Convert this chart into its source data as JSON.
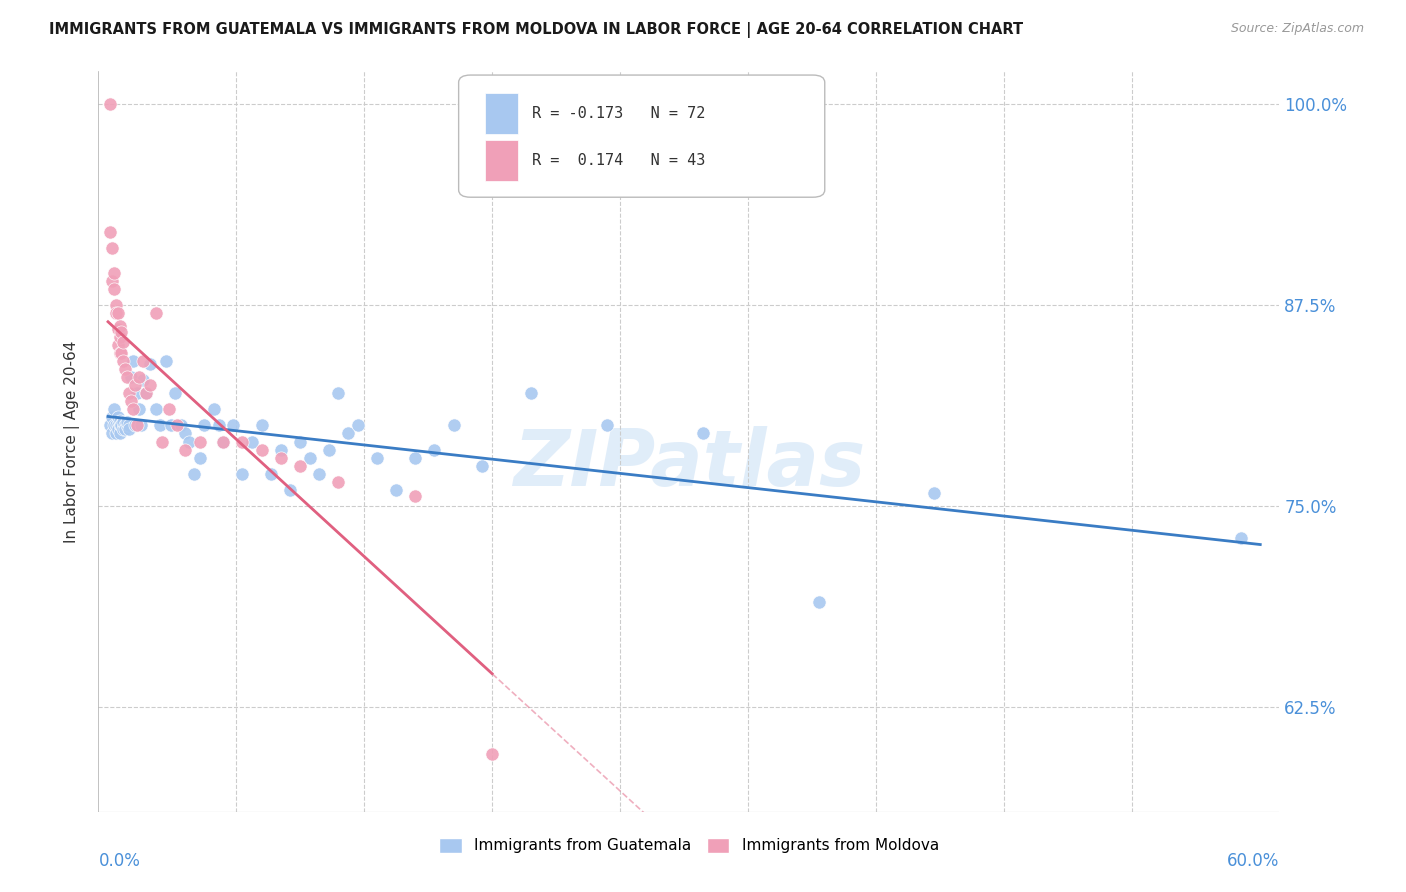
{
  "title": "IMMIGRANTS FROM GUATEMALA VS IMMIGRANTS FROM MOLDOVA IN LABOR FORCE | AGE 20-64 CORRELATION CHART",
  "source": "Source: ZipAtlas.com",
  "ylabel": "In Labor Force | Age 20-64",
  "watermark": "ZIPatlas",
  "legend_blue_r": "-0.173",
  "legend_blue_n": "72",
  "legend_pink_r": "0.174",
  "legend_pink_n": "43",
  "legend_label_blue": "Immigrants from Guatemala",
  "legend_label_pink": "Immigrants from Moldova",
  "blue_color": "#a8c8f0",
  "pink_color": "#f0a0b8",
  "blue_line_color": "#3a7cc4",
  "pink_line_color": "#e06080",
  "ytick_values": [
    0.625,
    0.75,
    0.875,
    1.0
  ],
  "ytick_labels": [
    "62.5%",
    "75.0%",
    "87.5%",
    "100.0%"
  ],
  "xlim": [
    0.0,
    0.6
  ],
  "ylim": [
    0.56,
    1.02
  ],
  "guatemala_x": [
    0.001,
    0.002,
    0.002,
    0.003,
    0.003,
    0.004,
    0.004,
    0.005,
    0.005,
    0.005,
    0.006,
    0.006,
    0.006,
    0.007,
    0.007,
    0.008,
    0.008,
    0.009,
    0.009,
    0.01,
    0.01,
    0.011,
    0.011,
    0.012,
    0.013,
    0.014,
    0.015,
    0.016,
    0.017,
    0.018,
    0.02,
    0.022,
    0.025,
    0.027,
    0.03,
    0.033,
    0.035,
    0.038,
    0.04,
    0.042,
    0.045,
    0.048,
    0.05,
    0.055,
    0.058,
    0.06,
    0.065,
    0.07,
    0.075,
    0.08,
    0.085,
    0.09,
    0.095,
    0.1,
    0.105,
    0.11,
    0.115,
    0.12,
    0.125,
    0.13,
    0.14,
    0.15,
    0.16,
    0.17,
    0.18,
    0.195,
    0.22,
    0.26,
    0.31,
    0.37,
    0.43,
    0.59
  ],
  "guatemala_y": [
    0.8,
    0.795,
    0.805,
    0.8,
    0.81,
    0.795,
    0.8,
    0.8,
    0.805,
    0.798,
    0.8,
    0.795,
    0.803,
    0.8,
    0.8,
    0.798,
    0.802,
    0.8,
    0.798,
    0.8,
    0.802,
    0.8,
    0.798,
    0.83,
    0.84,
    0.8,
    0.82,
    0.81,
    0.8,
    0.828,
    0.82,
    0.838,
    0.81,
    0.8,
    0.84,
    0.8,
    0.82,
    0.8,
    0.795,
    0.79,
    0.77,
    0.78,
    0.8,
    0.81,
    0.8,
    0.79,
    0.8,
    0.77,
    0.79,
    0.8,
    0.77,
    0.785,
    0.76,
    0.79,
    0.78,
    0.77,
    0.785,
    0.82,
    0.795,
    0.8,
    0.78,
    0.76,
    0.78,
    0.785,
    0.8,
    0.775,
    0.82,
    0.8,
    0.795,
    0.69,
    0.758,
    0.73
  ],
  "moldova_x": [
    0.001,
    0.001,
    0.002,
    0.002,
    0.003,
    0.003,
    0.004,
    0.004,
    0.005,
    0.005,
    0.005,
    0.006,
    0.006,
    0.006,
    0.007,
    0.007,
    0.008,
    0.008,
    0.009,
    0.01,
    0.011,
    0.012,
    0.013,
    0.014,
    0.015,
    0.016,
    0.018,
    0.02,
    0.022,
    0.025,
    0.028,
    0.032,
    0.036,
    0.04,
    0.048,
    0.06,
    0.07,
    0.08,
    0.09,
    0.1,
    0.12,
    0.16,
    0.2
  ],
  "moldova_y": [
    1.0,
    0.92,
    0.91,
    0.89,
    0.885,
    0.895,
    0.875,
    0.87,
    0.86,
    0.85,
    0.87,
    0.855,
    0.845,
    0.862,
    0.845,
    0.858,
    0.84,
    0.852,
    0.835,
    0.83,
    0.82,
    0.815,
    0.81,
    0.825,
    0.8,
    0.83,
    0.84,
    0.82,
    0.825,
    0.87,
    0.79,
    0.81,
    0.8,
    0.785,
    0.79,
    0.79,
    0.79,
    0.785,
    0.78,
    0.775,
    0.765,
    0.756,
    0.596
  ]
}
